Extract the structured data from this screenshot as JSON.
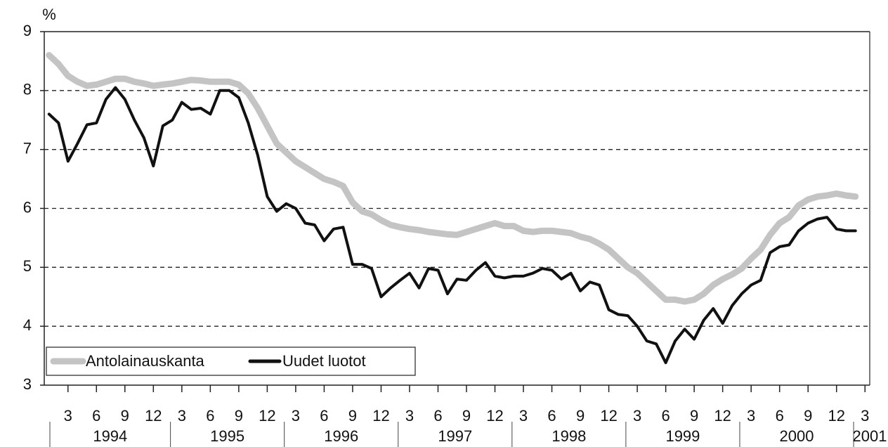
{
  "chart_data": {
    "type": "line",
    "y_label": "%",
    "categories": [
      null,
      null,
      "3",
      null,
      null,
      "6",
      null,
      null,
      "9",
      null,
      null,
      "12",
      null,
      null,
      "3",
      null,
      null,
      "6",
      null,
      null,
      "9",
      null,
      null,
      "12",
      null,
      null,
      "3",
      null,
      null,
      "6",
      null,
      null,
      "9",
      null,
      null,
      "12",
      null,
      null,
      "3",
      null,
      null,
      "6",
      null,
      null,
      "9",
      null,
      null,
      "12",
      null,
      null,
      "3",
      null,
      null,
      "6",
      null,
      null,
      "9",
      null,
      null,
      "12",
      null,
      null,
      "3",
      null,
      null,
      "6",
      null,
      null,
      "9",
      null,
      null,
      "12",
      null,
      null,
      "3",
      null,
      null,
      "6",
      null,
      null,
      "9",
      null,
      null,
      "12",
      null,
      null,
      "3"
    ],
    "year_labels": [
      "1994",
      "1995",
      "1996",
      "1997",
      "1998",
      "1999",
      "2000",
      "2001"
    ],
    "series": [
      {
        "name": "Antolainauskanta",
        "color": "#c4c4c4",
        "values": [
          8.6,
          8.45,
          8.25,
          8.15,
          8.08,
          8.1,
          8.15,
          8.2,
          8.2,
          8.15,
          8.12,
          8.08,
          8.1,
          8.12,
          8.15,
          8.18,
          8.17,
          8.15,
          8.15,
          8.15,
          8.1,
          7.95,
          7.7,
          7.4,
          7.1,
          6.95,
          6.8,
          6.7,
          6.6,
          6.5,
          6.45,
          6.38,
          6.1,
          5.95,
          5.9,
          5.8,
          5.72,
          5.68,
          5.65,
          5.63,
          5.6,
          5.58,
          5.56,
          5.55,
          5.6,
          5.65,
          5.7,
          5.75,
          5.7,
          5.7,
          5.62,
          5.6,
          5.62,
          5.62,
          5.6,
          5.58,
          5.52,
          5.48,
          5.4,
          5.3,
          5.15,
          5.0,
          4.9,
          4.75,
          4.6,
          4.45,
          4.45,
          4.42,
          4.45,
          4.55,
          4.7,
          4.8,
          4.88,
          4.98,
          5.15,
          5.3,
          5.55,
          5.75,
          5.85,
          6.05,
          6.15,
          6.2,
          6.22,
          6.25,
          6.22,
          6.2,
          null
        ]
      },
      {
        "name": "Uudet luotot",
        "color": "#111111",
        "values": [
          7.6,
          7.45,
          6.8,
          7.1,
          7.42,
          7.45,
          7.85,
          8.05,
          7.85,
          7.5,
          7.2,
          6.72,
          7.4,
          7.5,
          7.8,
          7.68,
          7.7,
          7.6,
          8.0,
          8.0,
          7.88,
          7.45,
          6.9,
          6.2,
          5.95,
          6.08,
          6.0,
          5.75,
          5.72,
          5.45,
          5.65,
          5.68,
          5.05,
          5.05,
          4.98,
          4.5,
          4.65,
          4.78,
          4.9,
          4.65,
          4.98,
          4.95,
          4.55,
          4.8,
          4.78,
          4.95,
          5.08,
          4.85,
          4.82,
          4.85,
          4.85,
          4.9,
          4.98,
          4.95,
          4.8,
          4.9,
          4.6,
          4.75,
          4.7,
          4.28,
          4.2,
          4.18,
          4.0,
          3.75,
          3.7,
          3.38,
          3.75,
          3.95,
          3.78,
          4.1,
          4.3,
          4.05,
          4.35,
          4.55,
          4.7,
          4.78,
          5.25,
          5.35,
          5.38,
          5.62,
          5.75,
          5.82,
          5.85,
          5.65,
          5.62,
          5.62,
          null
        ]
      }
    ],
    "ylim": [
      3,
      9
    ],
    "yticks": [
      3,
      4,
      5,
      6,
      7,
      8,
      9
    ],
    "grid": true,
    "legend": "lower left"
  }
}
